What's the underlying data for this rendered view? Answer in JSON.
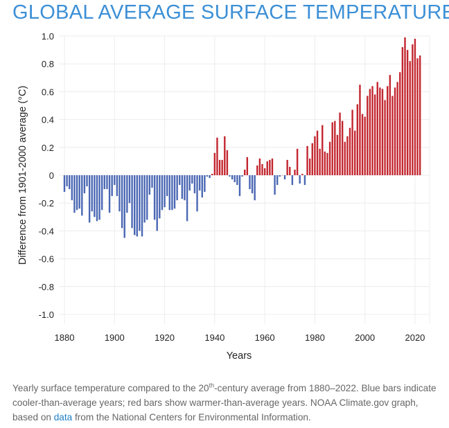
{
  "chart_data": {
    "type": "bar",
    "title": "GLOBAL AVERAGE SURFACE TEMPERATURE",
    "xlabel": "Years",
    "ylabel": "Difference from 1901-2000 average (°C)",
    "ylim": [
      -1.0,
      1.0
    ],
    "xlim": [
      1880,
      2022
    ],
    "yticks": [
      "1.0",
      "0.8",
      "0.6",
      "0.4",
      "0.2",
      "0",
      "-0.2",
      "-0.4",
      "-0.6",
      "-0.8",
      "-1.0"
    ],
    "xticks": [
      "1880",
      "1900",
      "1920",
      "1940",
      "1960",
      "1980",
      "2000",
      "2020"
    ],
    "grid": true,
    "colors": {
      "negative": "#4a67b3",
      "positive": "#c3262f"
    },
    "start_year": 1880,
    "values": [
      -0.12,
      -0.08,
      -0.1,
      -0.18,
      -0.27,
      -0.25,
      -0.24,
      -0.29,
      -0.13,
      -0.08,
      -0.34,
      -0.26,
      -0.3,
      -0.33,
      -0.32,
      -0.25,
      -0.1,
      -0.1,
      -0.27,
      -0.15,
      -0.07,
      -0.15,
      -0.26,
      -0.38,
      -0.45,
      -0.27,
      -0.2,
      -0.38,
      -0.43,
      -0.44,
      -0.4,
      -0.44,
      -0.34,
      -0.32,
      -0.14,
      -0.09,
      -0.32,
      -0.4,
      -0.31,
      -0.25,
      -0.23,
      -0.15,
      -0.25,
      -0.25,
      -0.24,
      -0.18,
      -0.07,
      -0.17,
      -0.18,
      -0.33,
      -0.11,
      -0.06,
      -0.13,
      -0.26,
      -0.11,
      -0.16,
      -0.12,
      -0.01,
      -0.02,
      0.01,
      0.16,
      0.27,
      0.11,
      0.11,
      0.28,
      0.18,
      -0.01,
      -0.03,
      -0.05,
      -0.07,
      -0.15,
      -0.01,
      0.04,
      0.13,
      -0.1,
      -0.13,
      -0.18,
      0.07,
      0.12,
      0.08,
      0.05,
      0.1,
      0.11,
      0.12,
      -0.14,
      -0.07,
      -0.01,
      0.0,
      -0.03,
      0.11,
      0.06,
      -0.07,
      0.04,
      0.19,
      -0.06,
      0.01,
      -0.07,
      0.21,
      0.12,
      0.23,
      0.28,
      0.32,
      0.19,
      0.36,
      0.17,
      0.16,
      0.24,
      0.38,
      0.39,
      0.29,
      0.45,
      0.39,
      0.24,
      0.28,
      0.34,
      0.47,
      0.32,
      0.51,
      0.65,
      0.44,
      0.42,
      0.57,
      0.62,
      0.64,
      0.58,
      0.67,
      0.63,
      0.62,
      0.54,
      0.64,
      0.72,
      0.57,
      0.63,
      0.67,
      0.74,
      0.92,
      0.99,
      0.9,
      0.82,
      0.94,
      0.98,
      0.84,
      0.86
    ]
  },
  "caption": {
    "part1": "Yearly surface temperature compared to the 20",
    "sup": "th",
    "part2": "-century average from 1880–2022. Blue bars indicate cooler-than-average years; red bars show warmer-than-average years. NOAA Climate.gov graph, based on ",
    "link": "data",
    "part3": " from the National Centers for Environmental Information."
  }
}
